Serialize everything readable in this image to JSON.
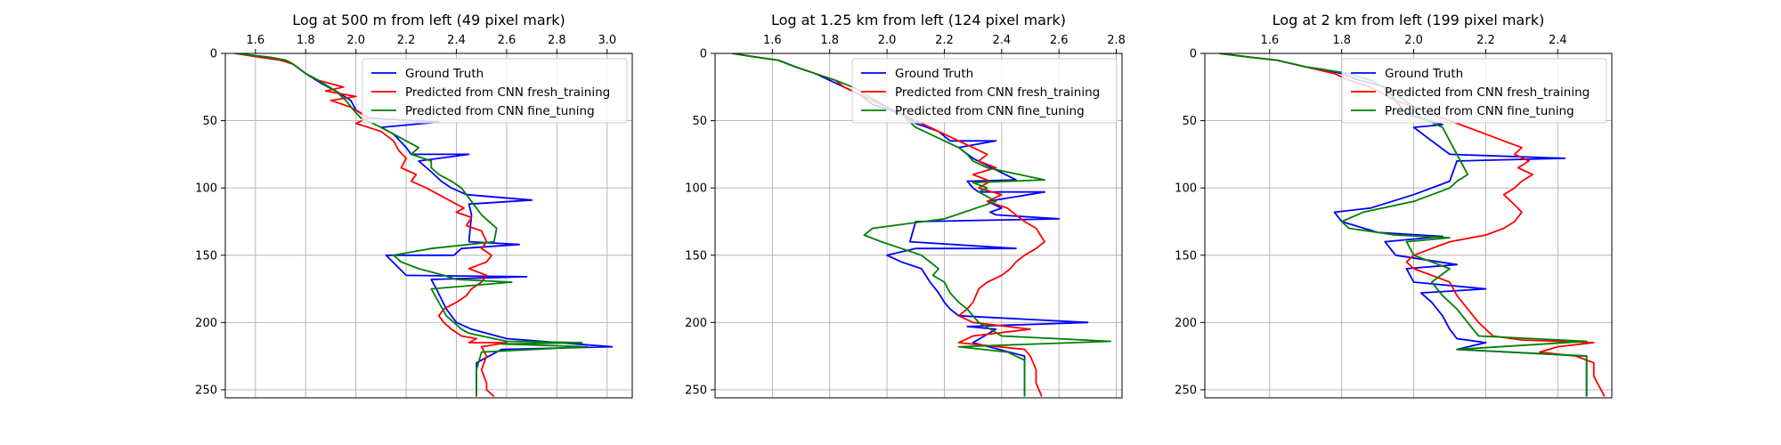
{
  "chart_data": [
    {
      "type": "line",
      "title": "Log at 500 m from left (49 pixel mark)",
      "xlim": [
        1.48,
        3.1
      ],
      "ylim": [
        0,
        256
      ],
      "y_inverted": true,
      "xaxis_position": "top",
      "grid": true,
      "legend": "top-right",
      "xticks": [
        1.6,
        1.8,
        2.0,
        2.2,
        2.4,
        2.6,
        2.8,
        3.0
      ],
      "xtick_labels": [
        "1.6",
        "1.8",
        "2.0",
        "2.2",
        "2.4",
        "2.6",
        "2.8",
        "3.0"
      ],
      "yticks": [
        0,
        50,
        100,
        150,
        200,
        250
      ],
      "ytick_labels": [
        "0",
        "50",
        "100",
        "150",
        "200",
        "250"
      ],
      "series": [
        {
          "name": "Ground Truth",
          "color": "#0000ff",
          "x": [
            1.52,
            1.66,
            1.72,
            1.75,
            1.8,
            1.86,
            1.92,
            1.98,
            2.0,
            2.05,
            2.33,
            2.1,
            2.15,
            2.2,
            2.22,
            2.45,
            2.25,
            2.3,
            2.34,
            2.38,
            2.44,
            2.7,
            2.45,
            2.46,
            2.45,
            2.65,
            2.42,
            2.39,
            2.12,
            2.2,
            2.68,
            2.3,
            2.32,
            2.36,
            2.4,
            2.46,
            2.6,
            3.02,
            2.58,
            2.48,
            2.48,
            2.48
          ],
          "y": [
            0,
            3,
            5,
            8,
            15,
            22,
            28,
            35,
            42,
            48,
            51,
            55,
            60,
            70,
            75,
            75,
            80,
            88,
            95,
            100,
            105,
            109,
            112,
            120,
            140,
            142,
            145,
            150,
            150,
            165,
            166,
            168,
            175,
            190,
            200,
            205,
            212,
            218,
            220,
            230,
            250,
            255
          ]
        },
        {
          "name": "Predicted from CNN fresh_training",
          "color": "#ff0000",
          "x": [
            1.52,
            1.62,
            1.7,
            1.75,
            1.8,
            1.85,
            1.95,
            1.88,
            2.0,
            1.9,
            1.98,
            2.05,
            2.0,
            2.1,
            2.15,
            2.17,
            2.2,
            2.18,
            2.24,
            2.22,
            2.28,
            2.33,
            2.38,
            2.43,
            2.4,
            2.46,
            2.44,
            2.5,
            2.52,
            2.5,
            2.54,
            2.52,
            2.45,
            2.52,
            2.5,
            2.46,
            2.44,
            2.4,
            2.35,
            2.33,
            2.35,
            2.38,
            2.42,
            2.48,
            2.45,
            2.6,
            2.5,
            2.52,
            2.5,
            2.52,
            2.52,
            2.55
          ],
          "y": [
            0,
            3,
            5,
            8,
            15,
            20,
            25,
            28,
            32,
            35,
            40,
            48,
            52,
            58,
            65,
            72,
            78,
            85,
            90,
            95,
            100,
            105,
            110,
            115,
            118,
            122,
            128,
            132,
            140,
            145,
            150,
            155,
            160,
            165,
            170,
            175,
            180,
            185,
            190,
            195,
            200,
            205,
            210,
            212,
            215,
            215,
            218,
            225,
            235,
            245,
            250,
            255
          ]
        },
        {
          "name": "Predicted from CNN fine_tuning",
          "color": "#008000",
          "x": [
            1.52,
            1.66,
            1.72,
            1.75,
            1.8,
            1.85,
            1.92,
            1.96,
            1.99,
            2.02,
            2.1,
            2.15,
            2.2,
            2.25,
            2.22,
            2.3,
            2.3,
            2.33,
            2.38,
            2.42,
            2.46,
            2.5,
            2.56,
            2.55,
            2.4,
            2.3,
            2.15,
            2.18,
            2.25,
            2.35,
            2.4,
            2.62,
            2.3,
            2.33,
            2.36,
            2.42,
            2.45,
            2.5,
            2.55,
            2.6,
            2.9,
            2.58,
            2.92,
            2.5,
            2.48,
            2.48
          ],
          "y": [
            0,
            3,
            5,
            8,
            15,
            20,
            28,
            35,
            42,
            48,
            55,
            60,
            65,
            70,
            75,
            80,
            85,
            90,
            95,
            100,
            110,
            120,
            130,
            140,
            143,
            145,
            150,
            155,
            160,
            165,
            168,
            170,
            175,
            185,
            195,
            205,
            208,
            210,
            212,
            214,
            215,
            216,
            218,
            222,
            235,
            255
          ]
        }
      ]
    },
    {
      "type": "line",
      "title": "Log at 1.25 km from left (124 pixel mark)",
      "xlim": [
        1.4,
        2.82
      ],
      "ylim": [
        0,
        256
      ],
      "y_inverted": true,
      "xaxis_position": "top",
      "grid": true,
      "legend": "top-right",
      "xticks": [
        1.6,
        1.8,
        2.0,
        2.2,
        2.4,
        2.6,
        2.8
      ],
      "xtick_labels": [
        "1.6",
        "1.8",
        "2.0",
        "2.2",
        "2.4",
        "2.6",
        "2.8"
      ],
      "yticks": [
        0,
        50,
        100,
        150,
        200,
        250
      ],
      "ytick_labels": [
        "0",
        "50",
        "100",
        "150",
        "200",
        "250"
      ],
      "series": [
        {
          "name": "Ground Truth",
          "color": "#0000ff",
          "x": [
            1.46,
            1.55,
            1.62,
            1.68,
            1.75,
            1.8,
            1.85,
            1.9,
            1.95,
            2.05,
            2.1,
            2.18,
            2.22,
            2.38,
            2.25,
            2.3,
            2.45,
            2.28,
            2.3,
            2.32,
            2.55,
            2.35,
            2.4,
            2.36,
            2.38,
            2.6,
            2.1,
            2.08,
            2.45,
            2.1,
            2.0,
            2.05,
            2.12,
            2.15,
            2.18,
            2.2,
            2.22,
            2.25,
            2.7,
            2.28,
            2.38,
            2.3,
            2.48,
            2.48,
            2.48
          ],
          "y": [
            0,
            3,
            5,
            10,
            15,
            20,
            25,
            30,
            38,
            45,
            52,
            58,
            65,
            65,
            70,
            78,
            94,
            95,
            100,
            103,
            103,
            110,
            115,
            118,
            120,
            123,
            125,
            140,
            145,
            145,
            150,
            155,
            160,
            170,
            178,
            185,
            190,
            195,
            200,
            203,
            205,
            215,
            225,
            240,
            255
          ]
        },
        {
          "name": "Predicted from CNN fresh_training",
          "color": "#ff0000",
          "x": [
            1.46,
            1.55,
            1.62,
            1.68,
            1.75,
            1.82,
            1.85,
            1.9,
            2.0,
            2.1,
            2.15,
            2.2,
            2.25,
            2.3,
            2.35,
            2.32,
            2.38,
            2.3,
            2.36,
            2.32,
            2.4,
            2.35,
            2.42,
            2.45,
            2.48,
            2.52,
            2.55,
            2.52,
            2.48,
            2.45,
            2.43,
            2.4,
            2.35,
            2.32,
            2.3,
            2.28,
            2.25,
            2.3,
            2.5,
            2.3,
            2.25,
            2.48,
            2.5,
            2.52,
            2.52,
            2.54
          ],
          "y": [
            0,
            3,
            5,
            10,
            15,
            20,
            25,
            30,
            40,
            50,
            55,
            60,
            65,
            70,
            75,
            80,
            85,
            90,
            95,
            100,
            105,
            110,
            115,
            120,
            125,
            130,
            140,
            145,
            150,
            155,
            160,
            165,
            170,
            175,
            185,
            190,
            195,
            200,
            205,
            210,
            215,
            220,
            225,
            235,
            245,
            255
          ]
        },
        {
          "name": "Predicted from CNN fine_tuning",
          "color": "#008000",
          "x": [
            1.46,
            1.55,
            1.62,
            1.68,
            1.75,
            1.82,
            1.88,
            1.92,
            2.0,
            2.05,
            2.1,
            2.2,
            2.25,
            2.28,
            2.3,
            2.35,
            2.55,
            2.3,
            2.35,
            2.32,
            2.38,
            2.2,
            1.95,
            1.92,
            1.98,
            2.05,
            2.12,
            2.15,
            2.18,
            2.16,
            2.2,
            2.22,
            2.25,
            2.28,
            2.3,
            2.32,
            2.36,
            2.4,
            2.78,
            2.25,
            2.42,
            2.48,
            2.48,
            2.48
          ],
          "y": [
            0,
            3,
            5,
            10,
            15,
            20,
            25,
            30,
            40,
            45,
            55,
            65,
            70,
            75,
            80,
            85,
            94,
            96,
            100,
            103,
            110,
            123,
            130,
            135,
            140,
            145,
            150,
            155,
            160,
            165,
            170,
            178,
            185,
            190,
            195,
            200,
            205,
            210,
            214,
            218,
            222,
            228,
            240,
            255
          ]
        }
      ]
    },
    {
      "type": "line",
      "title": "Log at 2 km from left (199 pixel mark)",
      "xlim": [
        1.42,
        2.55
      ],
      "ylim": [
        0,
        256
      ],
      "y_inverted": true,
      "xaxis_position": "top",
      "grid": true,
      "legend": "top-right",
      "xticks": [
        1.6,
        1.8,
        2.0,
        2.2,
        2.4
      ],
      "xtick_labels": [
        "1.6",
        "1.8",
        "2.0",
        "2.2",
        "2.4"
      ],
      "yticks": [
        0,
        50,
        100,
        150,
        200,
        250
      ],
      "ytick_labels": [
        "0",
        "50",
        "100",
        "150",
        "200",
        "250"
      ],
      "series": [
        {
          "name": "Ground Truth",
          "color": "#0000ff",
          "x": [
            1.46,
            1.55,
            1.62,
            1.7,
            1.75,
            1.8,
            1.85,
            1.92,
            1.95,
            1.98,
            2.08,
            2.0,
            2.05,
            2.1,
            2.42,
            2.12,
            2.1,
            2.0,
            1.88,
            1.78,
            1.8,
            1.9,
            2.08,
            1.92,
            1.95,
            2.12,
            1.98,
            2.0,
            2.2,
            2.02,
            2.05,
            2.08,
            2.1,
            2.12,
            2.2,
            2.12,
            2.48,
            2.48,
            2.48
          ],
          "y": [
            0,
            3,
            5,
            10,
            12,
            15,
            20,
            25,
            35,
            45,
            53,
            55,
            65,
            75,
            78,
            80,
            95,
            105,
            115,
            118,
            125,
            133,
            136,
            140,
            150,
            157,
            160,
            170,
            175,
            178,
            185,
            195,
            205,
            212,
            215,
            220,
            225,
            240,
            255
          ]
        },
        {
          "name": "Predicted from CNN fresh_training",
          "color": "#ff0000",
          "x": [
            1.46,
            1.55,
            1.62,
            1.7,
            1.78,
            1.82,
            1.88,
            1.95,
            2.05,
            2.1,
            2.15,
            2.2,
            2.25,
            2.3,
            2.28,
            2.32,
            2.29,
            2.33,
            2.3,
            2.28,
            2.25,
            2.27,
            2.3,
            2.28,
            2.25,
            2.2,
            2.1,
            2.0,
            1.98,
            2.0,
            2.05,
            2.1,
            2.12,
            2.15,
            2.18,
            2.22,
            2.3,
            2.5,
            2.4,
            2.35,
            2.45,
            2.5,
            2.5,
            2.52,
            2.53
          ],
          "y": [
            0,
            3,
            5,
            10,
            15,
            20,
            25,
            35,
            45,
            50,
            55,
            60,
            65,
            70,
            75,
            80,
            85,
            90,
            95,
            100,
            105,
            110,
            118,
            125,
            130,
            135,
            140,
            150,
            155,
            160,
            165,
            170,
            180,
            190,
            200,
            210,
            213,
            215,
            218,
            222,
            225,
            230,
            240,
            250,
            255
          ]
        },
        {
          "name": "Predicted from CNN fine_tuning",
          "color": "#008000",
          "x": [
            1.46,
            1.55,
            1.62,
            1.7,
            1.75,
            1.82,
            1.88,
            1.95,
            2.0,
            2.02,
            2.08,
            2.1,
            2.12,
            2.15,
            2.12,
            2.1,
            2.0,
            1.86,
            1.8,
            1.82,
            1.95,
            2.1,
            1.98,
            2.0,
            2.1,
            2.05,
            2.08,
            2.12,
            2.15,
            2.18,
            2.48,
            2.12,
            2.48,
            2.48,
            2.48
          ],
          "y": [
            0,
            3,
            5,
            10,
            12,
            15,
            20,
            30,
            40,
            48,
            55,
            65,
            75,
            90,
            95,
            100,
            110,
            118,
            125,
            130,
            135,
            137,
            140,
            150,
            160,
            170,
            180,
            190,
            200,
            210,
            214,
            220,
            225,
            240,
            255
          ]
        }
      ]
    }
  ]
}
